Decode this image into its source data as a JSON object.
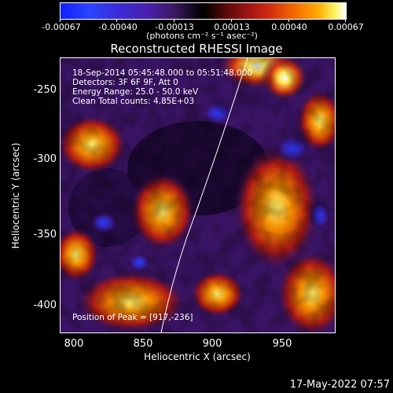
{
  "colorbar": {
    "tick_labels": [
      "-0.00067",
      "-0.00040",
      "-0.00013",
      "0.00013",
      "0.00040",
      "0.00067"
    ],
    "units_label": "(photons cm⁻² s⁻¹ asec⁻²)"
  },
  "title": "Reconstructed RHESSI Image",
  "annotations": {
    "time_range": "18-Sep-2014 05:45:48.000 to 05:51:48.000",
    "detectors": "Detectors: 3F 6F 9F, Att 0",
    "energy_range": "Energy Range: 25.0 - 50.0 keV",
    "clean_counts": "Clean     Total counts: 4.85E+03",
    "peak_position": "Position of Peak = [917,-236]"
  },
  "axes": {
    "xlabel": "Heliocentric X (arcsec)",
    "ylabel": "Heliocentric Y (arcsec)",
    "x_ticks": [
      "800",
      "850",
      "900",
      "950"
    ],
    "y_ticks": [
      "-250",
      "-300",
      "-350",
      "-400"
    ]
  },
  "footer_timestamp": "17-May-2022 07:57",
  "colors": {
    "background": "#000000",
    "text": "#ffffff",
    "limb_line": "#ffffff"
  }
}
